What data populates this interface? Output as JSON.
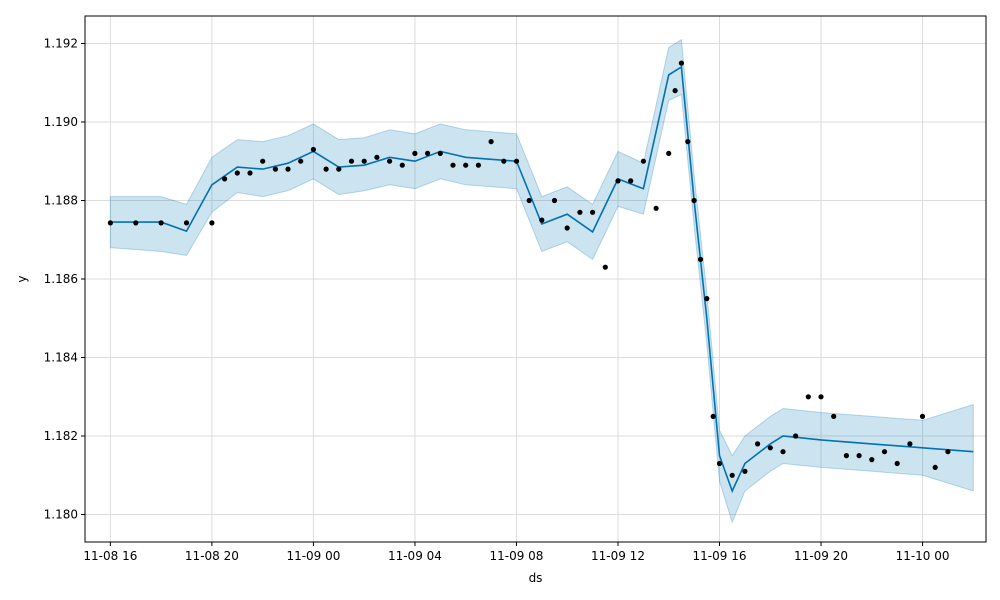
{
  "chart_data": {
    "type": "line",
    "xlabel": "ds",
    "ylabel": "y",
    "grid": true,
    "xlim": [
      "2021-11-08 15:00",
      "2021-11-10 02:30"
    ],
    "ylim": [
      1.1793,
      1.1927
    ],
    "x_ticks": [
      {
        "t": "2021-11-08 16:00",
        "label": "11-08 16"
      },
      {
        "t": "2021-11-08 20:00",
        "label": "11-08 20"
      },
      {
        "t": "2021-11-09 00:00",
        "label": "11-09 00"
      },
      {
        "t": "2021-11-09 04:00",
        "label": "11-09 04"
      },
      {
        "t": "2021-11-09 08:00",
        "label": "11-09 08"
      },
      {
        "t": "2021-11-09 12:00",
        "label": "11-09 12"
      },
      {
        "t": "2021-11-09 16:00",
        "label": "11-09 16"
      },
      {
        "t": "2021-11-09 20:00",
        "label": "11-09 20"
      },
      {
        "t": "2021-11-10 00:00",
        "label": "11-10 00"
      }
    ],
    "y_ticks": [
      {
        "v": 1.18,
        "label": "1.180"
      },
      {
        "v": 1.182,
        "label": "1.182"
      },
      {
        "v": 1.184,
        "label": "1.184"
      },
      {
        "v": 1.186,
        "label": "1.186"
      },
      {
        "v": 1.188,
        "label": "1.188"
      },
      {
        "v": 1.19,
        "label": "1.190"
      },
      {
        "v": 1.192,
        "label": "1.192"
      }
    ],
    "colors": {
      "forecast": "#0072B2",
      "band": "#0072B2",
      "observed": "#000000",
      "grid": "#dddddd"
    },
    "series": [
      {
        "kind": "forecast",
        "x": [
          "2021-11-08 16:00",
          "2021-11-08 18:00",
          "2021-11-08 19:00",
          "2021-11-08 20:00",
          "2021-11-08 21:00",
          "2021-11-08 22:00",
          "2021-11-08 23:00",
          "2021-11-09 00:00",
          "2021-11-09 01:00",
          "2021-11-09 02:00",
          "2021-11-09 03:00",
          "2021-11-09 04:00",
          "2021-11-09 05:00",
          "2021-11-09 06:00",
          "2021-11-09 07:00",
          "2021-11-09 08:00",
          "2021-11-09 09:00",
          "2021-11-09 10:00",
          "2021-11-09 11:00",
          "2021-11-09 12:00",
          "2021-11-09 13:00",
          "2021-11-09 14:00",
          "2021-11-09 14:30",
          "2021-11-09 15:00",
          "2021-11-09 15:30",
          "2021-11-09 16:00",
          "2021-11-09 16:30",
          "2021-11-09 17:00",
          "2021-11-09 18:00",
          "2021-11-09 18:30",
          "2021-11-09 20:00",
          "2021-11-09 22:00",
          "2021-11-10 00:00",
          "2021-11-10 02:00"
        ],
        "y": [
          1.18745,
          1.18745,
          1.18722,
          1.1884,
          1.18885,
          1.1888,
          1.18895,
          1.18925,
          1.18885,
          1.1889,
          1.1891,
          1.189,
          1.18925,
          1.1891,
          1.18905,
          1.189,
          1.1874,
          1.18765,
          1.1872,
          1.18855,
          1.1883,
          1.1912,
          1.1914,
          1.188,
          1.185,
          1.1815,
          1.1806,
          1.1813,
          1.1818,
          1.182,
          1.1819,
          1.1818,
          1.1817,
          1.1816
        ]
      },
      {
        "kind": "band",
        "x": [
          "2021-11-08 16:00",
          "2021-11-08 18:00",
          "2021-11-08 19:00",
          "2021-11-08 20:00",
          "2021-11-08 21:00",
          "2021-11-08 22:00",
          "2021-11-08 23:00",
          "2021-11-09 00:00",
          "2021-11-09 01:00",
          "2021-11-09 02:00",
          "2021-11-09 03:00",
          "2021-11-09 04:00",
          "2021-11-09 05:00",
          "2021-11-09 06:00",
          "2021-11-09 07:00",
          "2021-11-09 08:00",
          "2021-11-09 09:00",
          "2021-11-09 10:00",
          "2021-11-09 11:00",
          "2021-11-09 12:00",
          "2021-11-09 13:00",
          "2021-11-09 14:00",
          "2021-11-09 14:30",
          "2021-11-09 15:00",
          "2021-11-09 15:30",
          "2021-11-09 16:00",
          "2021-11-09 16:30",
          "2021-11-09 17:00",
          "2021-11-09 18:00",
          "2021-11-09 18:30",
          "2021-11-09 20:00",
          "2021-11-09 22:00",
          "2021-11-10 00:00",
          "2021-11-10 02:00"
        ],
        "lower": [
          1.1868,
          1.1867,
          1.1866,
          1.1877,
          1.1882,
          1.1881,
          1.18825,
          1.18855,
          1.18815,
          1.18825,
          1.1884,
          1.1883,
          1.18855,
          1.1884,
          1.18835,
          1.1883,
          1.1867,
          1.18695,
          1.1865,
          1.18785,
          1.18765,
          1.19055,
          1.1907,
          1.18735,
          1.18435,
          1.18085,
          1.1798,
          1.1806,
          1.1811,
          1.1813,
          1.1812,
          1.1811,
          1.181,
          1.1806
        ],
        "upper": [
          1.1881,
          1.1881,
          1.1879,
          1.1891,
          1.18955,
          1.1895,
          1.18965,
          1.18995,
          1.18955,
          1.1896,
          1.1898,
          1.1897,
          1.18995,
          1.1898,
          1.18975,
          1.1897,
          1.1881,
          1.18835,
          1.1879,
          1.18925,
          1.18895,
          1.1919,
          1.1921,
          1.18865,
          1.18565,
          1.18215,
          1.1815,
          1.182,
          1.1825,
          1.1827,
          1.1826,
          1.1825,
          1.1824,
          1.1828
        ]
      },
      {
        "kind": "observed",
        "x": [
          "2021-11-08 16:00",
          "2021-11-08 17:00",
          "2021-11-08 18:00",
          "2021-11-08 19:00",
          "2021-11-08 20:00",
          "2021-11-08 20:30",
          "2021-11-08 21:00",
          "2021-11-08 21:30",
          "2021-11-08 22:00",
          "2021-11-08 22:30",
          "2021-11-08 23:00",
          "2021-11-08 23:30",
          "2021-11-09 00:00",
          "2021-11-09 00:30",
          "2021-11-09 01:00",
          "2021-11-09 01:30",
          "2021-11-09 02:00",
          "2021-11-09 02:30",
          "2021-11-09 03:00",
          "2021-11-09 03:30",
          "2021-11-09 04:00",
          "2021-11-09 04:30",
          "2021-11-09 05:00",
          "2021-11-09 05:30",
          "2021-11-09 06:00",
          "2021-11-09 06:30",
          "2021-11-09 07:00",
          "2021-11-09 07:30",
          "2021-11-09 08:00",
          "2021-11-09 08:30",
          "2021-11-09 09:00",
          "2021-11-09 09:30",
          "2021-11-09 10:00",
          "2021-11-09 10:30",
          "2021-11-09 11:00",
          "2021-11-09 11:30",
          "2021-11-09 12:00",
          "2021-11-09 12:30",
          "2021-11-09 13:00",
          "2021-11-09 13:30",
          "2021-11-09 14:00",
          "2021-11-09 14:15",
          "2021-11-09 14:30",
          "2021-11-09 14:45",
          "2021-11-09 15:00",
          "2021-11-09 15:15",
          "2021-11-09 15:30",
          "2021-11-09 15:45",
          "2021-11-09 16:00",
          "2021-11-09 16:30",
          "2021-11-09 17:00",
          "2021-11-09 17:30",
          "2021-11-09 18:00",
          "2021-11-09 18:30",
          "2021-11-09 19:00",
          "2021-11-09 19:30",
          "2021-11-09 20:00",
          "2021-11-09 20:30",
          "2021-11-09 21:00",
          "2021-11-09 21:30",
          "2021-11-09 22:00",
          "2021-11-09 22:30",
          "2021-11-09 23:00",
          "2021-11-09 23:30",
          "2021-11-10 00:00",
          "2021-11-10 00:30",
          "2021-11-10 01:00"
        ],
        "y": [
          1.18743,
          1.18743,
          1.18743,
          1.18743,
          1.18743,
          1.18855,
          1.1887,
          1.1887,
          1.189,
          1.1888,
          1.1888,
          1.189,
          1.1893,
          1.1888,
          1.1888,
          1.189,
          1.189,
          1.1891,
          1.189,
          1.1889,
          1.1892,
          1.1892,
          1.1892,
          1.1889,
          1.1889,
          1.1889,
          1.1895,
          1.189,
          1.189,
          1.188,
          1.1875,
          1.188,
          1.1873,
          1.1877,
          1.1877,
          1.1863,
          1.1885,
          1.1885,
          1.189,
          1.1878,
          1.1892,
          1.1908,
          1.1915,
          1.1895,
          1.188,
          1.1865,
          1.1855,
          1.1825,
          1.1813,
          1.181,
          1.1811,
          1.1818,
          1.1817,
          1.1816,
          1.182,
          1.183,
          1.183,
          1.1825,
          1.1815,
          1.1815,
          1.1814,
          1.1816,
          1.1813,
          1.1818,
          1.1825,
          1.1812,
          1.1816
        ]
      }
    ]
  }
}
